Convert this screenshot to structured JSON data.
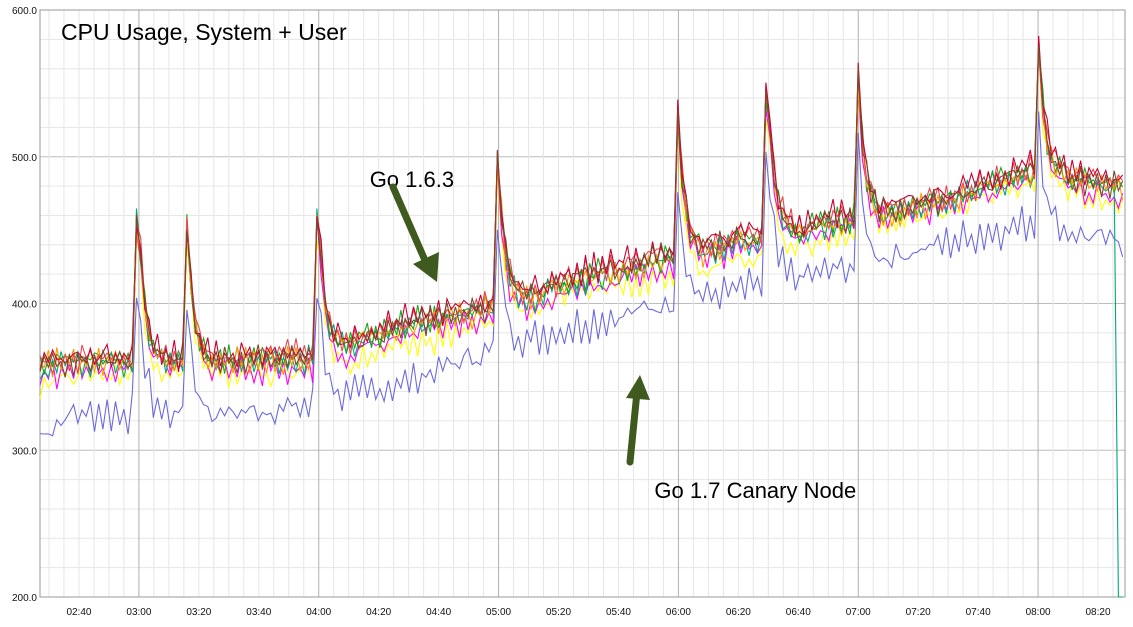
{
  "chart_data": {
    "type": "line",
    "title": "CPU Usage, System + User",
    "xlabel": "",
    "ylabel": "",
    "ylim": [
      200,
      600
    ],
    "xlim": [
      "02:27",
      "08:29"
    ],
    "grid": true,
    "legend": "none",
    "y_ticks": [
      "200.0",
      "300.0",
      "400.0",
      "500.0",
      "600.0"
    ],
    "x_ticks": [
      "02:40",
      "03:00",
      "03:20",
      "03:40",
      "04:00",
      "04:20",
      "04:40",
      "05:00",
      "05:20",
      "05:40",
      "06:00",
      "06:20",
      "06:40",
      "07:00",
      "07:20",
      "07:40",
      "08:00",
      "08:20"
    ],
    "spike_times": [
      "03:00",
      "03:16",
      "04:00",
      "05:00",
      "06:00",
      "06:30",
      "07:00",
      "08:00"
    ],
    "canary_drop": {
      "time": "08:26",
      "value": 200
    },
    "series": [
      {
        "color": "#6b6bdc",
        "base": [
          [
            0,
            310
          ],
          [
            10,
            325
          ],
          [
            33,
            325
          ],
          [
            60,
            325
          ],
          [
            90,
            330
          ],
          [
            120,
            345
          ],
          [
            150,
            368
          ],
          [
            180,
            385
          ],
          [
            210,
            400
          ],
          [
            240,
            412
          ],
          [
            270,
            425
          ],
          [
            300,
            440
          ],
          [
            330,
            455
          ],
          [
            362,
            440
          ]
        ]
      },
      {
        "color": "#ffff00",
        "base": [
          [
            0,
            345
          ],
          [
            10,
            352
          ],
          [
            33,
            352
          ],
          [
            60,
            352
          ],
          [
            90,
            352
          ],
          [
            120,
            370
          ],
          [
            150,
            385
          ],
          [
            180,
            408
          ],
          [
            210,
            420
          ],
          [
            240,
            432
          ],
          [
            270,
            448
          ],
          [
            300,
            462
          ],
          [
            330,
            482
          ],
          [
            362,
            465
          ]
        ]
      },
      {
        "color": "#ff00ff",
        "base": [
          [
            0,
            350
          ],
          [
            10,
            355
          ],
          [
            33,
            355
          ],
          [
            60,
            355
          ],
          [
            90,
            355
          ],
          [
            120,
            377
          ],
          [
            150,
            390
          ],
          [
            180,
            410
          ],
          [
            210,
            425
          ],
          [
            240,
            440
          ],
          [
            270,
            452
          ],
          [
            300,
            465
          ],
          [
            330,
            485
          ],
          [
            362,
            470
          ]
        ]
      },
      {
        "color": "#00a878",
        "base": [
          [
            0,
            355
          ],
          [
            10,
            360
          ],
          [
            33,
            360
          ],
          [
            60,
            360
          ],
          [
            90,
            362
          ],
          [
            120,
            382
          ],
          [
            150,
            395
          ],
          [
            180,
            415
          ],
          [
            210,
            430
          ],
          [
            240,
            443
          ],
          [
            270,
            455
          ],
          [
            300,
            468
          ],
          [
            330,
            488
          ],
          [
            362,
            478
          ]
        ]
      },
      {
        "color": "#1aa81a",
        "base": [
          [
            0,
            360
          ],
          [
            10,
            362
          ],
          [
            33,
            362
          ],
          [
            60,
            362
          ],
          [
            90,
            365
          ],
          [
            120,
            385
          ],
          [
            150,
            398
          ],
          [
            180,
            418
          ],
          [
            210,
            432
          ],
          [
            240,
            446
          ],
          [
            270,
            458
          ],
          [
            300,
            470
          ],
          [
            330,
            490
          ],
          [
            362,
            480
          ]
        ]
      },
      {
        "color": "#ff9900",
        "base": [
          [
            0,
            358
          ],
          [
            10,
            360
          ],
          [
            33,
            360
          ],
          [
            60,
            360
          ],
          [
            90,
            363
          ],
          [
            120,
            383
          ],
          [
            150,
            396
          ],
          [
            180,
            416
          ],
          [
            210,
            430
          ],
          [
            240,
            444
          ],
          [
            270,
            456
          ],
          [
            300,
            468
          ],
          [
            330,
            488
          ],
          [
            362,
            478
          ]
        ]
      },
      {
        "color": "#e8484e",
        "base": [
          [
            0,
            360
          ],
          [
            10,
            363
          ],
          [
            33,
            363
          ],
          [
            60,
            363
          ],
          [
            90,
            366
          ],
          [
            120,
            386
          ],
          [
            150,
            400
          ],
          [
            180,
            420
          ],
          [
            210,
            434
          ],
          [
            240,
            448
          ],
          [
            270,
            460
          ],
          [
            300,
            472
          ],
          [
            330,
            493
          ],
          [
            362,
            482
          ]
        ]
      },
      {
        "color": "#c80032",
        "base": [
          [
            0,
            362
          ],
          [
            10,
            364
          ],
          [
            33,
            364
          ],
          [
            60,
            364
          ],
          [
            90,
            367
          ],
          [
            120,
            388
          ],
          [
            150,
            402
          ],
          [
            180,
            422
          ],
          [
            210,
            436
          ],
          [
            240,
            450
          ],
          [
            270,
            462
          ],
          [
            300,
            474
          ],
          [
            330,
            495
          ],
          [
            362,
            484
          ]
        ]
      },
      {
        "color": "#7a4a2a",
        "base": [
          [
            0,
            358
          ],
          [
            10,
            360
          ],
          [
            33,
            360
          ],
          [
            60,
            360
          ],
          [
            90,
            363
          ],
          [
            120,
            384
          ],
          [
            150,
            398
          ],
          [
            180,
            418
          ],
          [
            210,
            432
          ],
          [
            240,
            446
          ],
          [
            270,
            458
          ],
          [
            300,
            470
          ],
          [
            330,
            490
          ],
          [
            362,
            480
          ]
        ]
      }
    ],
    "annotations": [
      {
        "text": "Go 1.6.3",
        "x": "04:17",
        "y": 485
      },
      {
        "text": "Go 1.7 Canary Node",
        "x": "05:52",
        "y": 273
      }
    ]
  }
}
